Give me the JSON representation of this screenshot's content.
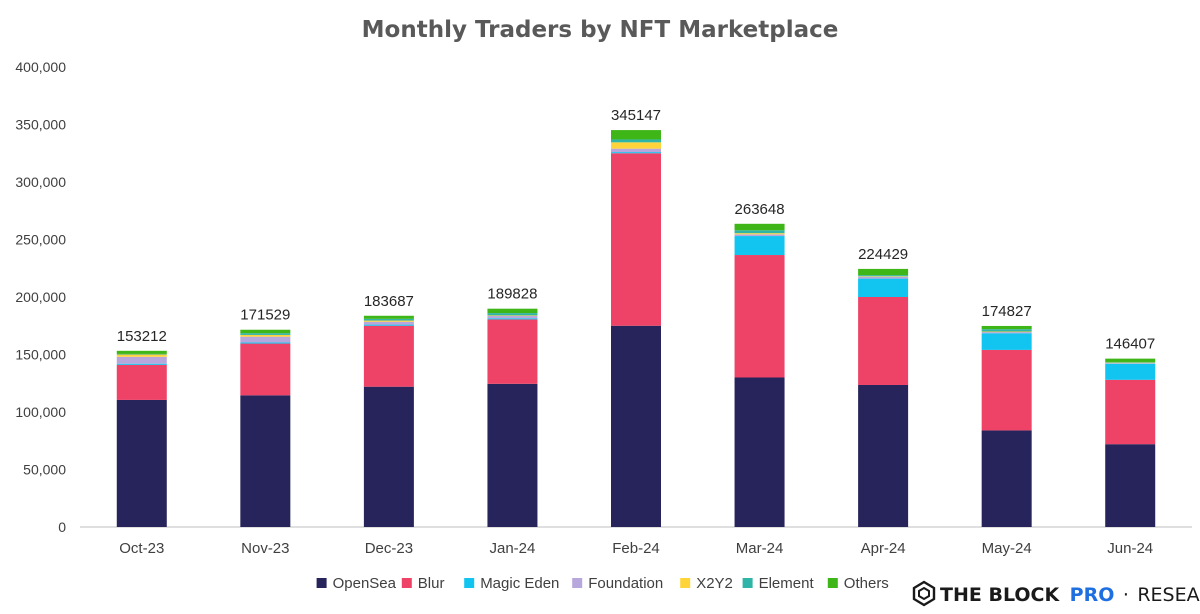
{
  "chart_data": {
    "type": "bar",
    "stacked": true,
    "title": "Monthly Traders by NFT Marketplace",
    "xlabel": "",
    "ylabel": "",
    "ylim": [
      0,
      400000
    ],
    "yticks": [
      "0",
      "50,000",
      "100,000",
      "150,000",
      "200,000",
      "250,000",
      "300,000",
      "350,000",
      "400,000"
    ],
    "grid": false,
    "legend_position": "bottom",
    "categories": [
      "Oct-23",
      "Nov-23",
      "Dec-23",
      "Jan-24",
      "Feb-24",
      "Mar-24",
      "Apr-24",
      "May-24",
      "Jun-24"
    ],
    "totals": [
      "153212",
      "171529",
      "183687",
      "189828",
      "345147",
      "263648",
      "224429",
      "174827",
      "146407"
    ],
    "series": [
      {
        "name": "OpenSea",
        "color": "#27235b",
        "values": [
          110500,
          114500,
          122000,
          124500,
          175000,
          130000,
          123500,
          84000,
          72000
        ]
      },
      {
        "name": "Blur",
        "color": "#ee4266",
        "values": [
          30500,
          45000,
          53000,
          56000,
          150000,
          106500,
          76500,
          70000,
          56000
        ]
      },
      {
        "name": "Magic Eden",
        "color": "#12c4f0",
        "values": [
          1000,
          1000,
          1000,
          1000,
          1000,
          16500,
          16000,
          14500,
          14000
        ]
      },
      {
        "name": "Foundation",
        "color": "#b7a7dc",
        "values": [
          6000,
          5000,
          2500,
          2000,
          3000,
          1500,
          1500,
          1000,
          500
        ]
      },
      {
        "name": "X2Y2",
        "color": "#ffd43b",
        "values": [
          2000,
          1500,
          1000,
          500,
          5500,
          1000,
          500,
          500,
          500
        ]
      },
      {
        "name": "Element",
        "color": "#2fb5a8",
        "values": [
          500,
          1500,
          1500,
          2000,
          2500,
          2500,
          1000,
          2000,
          500
        ]
      },
      {
        "name": "Others",
        "color": "#3fb618",
        "values": [
          2712,
          3029,
          2687,
          3828,
          8147,
          5648,
          5429,
          2827,
          2907
        ]
      }
    ]
  },
  "branding": {
    "main": "THE BLOCK",
    "pro": "PRO",
    "separator": "·",
    "research": "RESEARCH"
  }
}
